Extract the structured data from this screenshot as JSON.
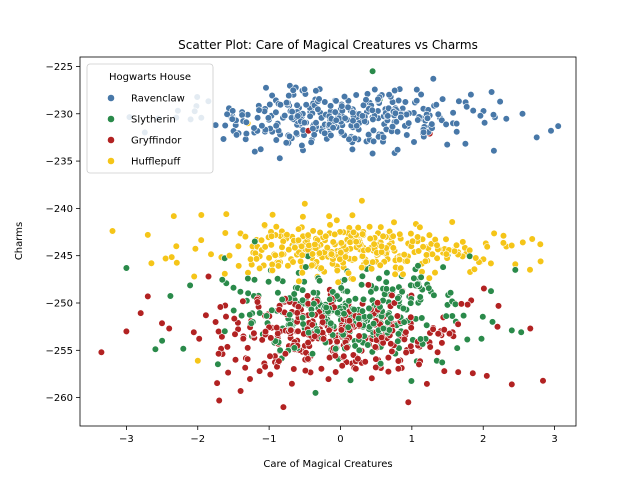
{
  "chart_data": {
    "type": "scatter",
    "title": "Scatter Plot: Care of Magical Creatures vs Charms",
    "xlabel": "Care of Magical Creatures",
    "ylabel": "Charms",
    "xlim": [
      -3.65,
      3.3
    ],
    "ylim": [
      -263,
      -224
    ],
    "xticks": [
      -3,
      -2,
      -1,
      0,
      1,
      2,
      3
    ],
    "yticks": [
      -260,
      -255,
      -250,
      -245,
      -240,
      -235,
      -230,
      -225
    ],
    "grid": false,
    "legend": {
      "title": "Hogwarts House",
      "placement": "top-left"
    },
    "series": [
      {
        "name": "Ravenclaw",
        "color": "#4878a8",
        "cluster": {
          "x_center": 0.1,
          "x_sd": 0.95,
          "y_center": -230.6,
          "y_sd": 1.5,
          "count": 330
        },
        "points": [
          [
            -2.55,
            -230.5
          ],
          [
            -2.3,
            -230.4
          ],
          [
            -2.1,
            -230.6
          ],
          [
            -1.75,
            -231.2
          ],
          [
            -1.3,
            -230.1
          ],
          [
            -1.2,
            -234.0
          ],
          [
            -0.85,
            -234.7
          ],
          [
            2.55,
            -230.0
          ],
          [
            2.75,
            -232.5
          ],
          [
            2.95,
            -231.8
          ],
          [
            3.05,
            -231.3
          ],
          [
            2.15,
            -233.9
          ],
          [
            1.3,
            -226.3
          ],
          [
            0.45,
            -234.2
          ],
          [
            0.8,
            -233.8
          ]
        ]
      },
      {
        "name": "Slytherin",
        "color": "#2a8a4a",
        "cluster": {
          "x_center": 0.05,
          "x_sd": 0.85,
          "y_center": -251.0,
          "y_sd": 2.4,
          "count": 330
        },
        "points": [
          [
            -3.0,
            -246.3
          ],
          [
            0.45,
            -225.5
          ],
          [
            2.45,
            -246.5
          ],
          [
            2.4,
            -252.9
          ],
          [
            -0.35,
            -259.5
          ],
          [
            1.35,
            -256.1
          ],
          [
            0.55,
            -228.5
          ],
          [
            -1.2,
            -243.5
          ],
          [
            1.5,
            -245.0
          ],
          [
            -2.5,
            -254.0
          ]
        ]
      },
      {
        "name": "Gryffindor",
        "color": "#b22222",
        "cluster": {
          "x_center": -0.05,
          "x_sd": 0.9,
          "y_center": -253.5,
          "y_sd": 2.2,
          "count": 330
        },
        "points": [
          [
            -3.35,
            -255.2
          ],
          [
            -3.0,
            -253.0
          ],
          [
            -2.7,
            -249.3
          ],
          [
            -2.4,
            -252.7
          ],
          [
            -1.7,
            -260.3
          ],
          [
            -1.4,
            -259.3
          ],
          [
            -0.8,
            -261.0
          ],
          [
            0.95,
            -260.5
          ],
          [
            1.65,
            -257.3
          ],
          [
            2.05,
            -257.7
          ],
          [
            2.4,
            -258.6
          ],
          [
            2.2,
            -252.5
          ],
          [
            -0.45,
            -231.8
          ],
          [
            1.25,
            -232.1
          ],
          [
            -1.85,
            -247.2
          ]
        ]
      },
      {
        "name": "Hufflepuff",
        "color": "#f5c518",
        "cluster": {
          "x_center": 0.1,
          "x_sd": 0.95,
          "y_center": -244.3,
          "y_sd": 1.4,
          "count": 330
        },
        "points": [
          [
            -2.7,
            -242.8
          ],
          [
            -2.65,
            -245.8
          ],
          [
            -2.45,
            -245.3
          ],
          [
            -2.3,
            -244.0
          ],
          [
            -2.05,
            -247.2
          ],
          [
            -2.0,
            -256.1
          ],
          [
            -1.95,
            -240.7
          ],
          [
            -1.6,
            -240.6
          ],
          [
            -0.5,
            -239.5
          ],
          [
            0.3,
            -239.2
          ],
          [
            2.45,
            -245.9
          ],
          [
            2.8,
            -243.8
          ],
          [
            -1.3,
            -231.0
          ]
        ]
      }
    ]
  }
}
